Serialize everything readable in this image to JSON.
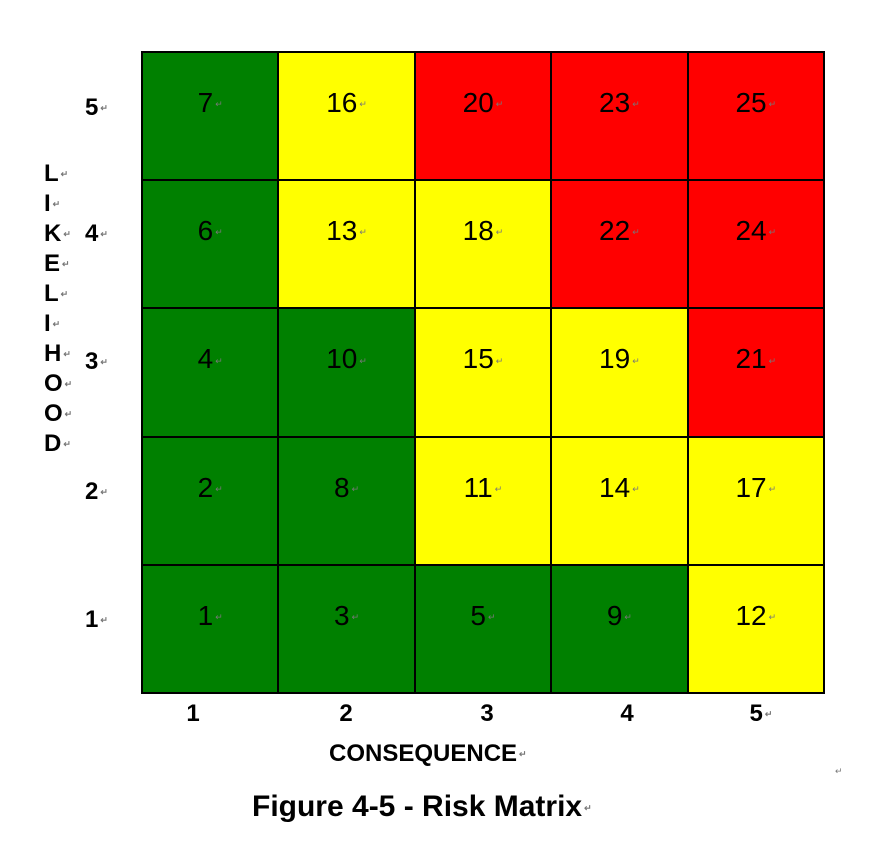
{
  "chart_data": {
    "type": "heatmap",
    "xlabel": "CONSEQUENCE",
    "ylabel": "LIKELIHOOD",
    "caption": "Figure 4-5 - Risk Matrix",
    "x_ticks": [
      "1",
      "2",
      "3",
      "4",
      "5"
    ],
    "y_ticks": [
      "5",
      "4",
      "3",
      "2",
      "1"
    ],
    "rows": [
      {
        "likelihood": "5",
        "values": [
          7,
          16,
          20,
          23,
          25
        ],
        "levels": [
          "green",
          "yellow",
          "red",
          "red",
          "red"
        ]
      },
      {
        "likelihood": "4",
        "values": [
          6,
          13,
          18,
          22,
          24
        ],
        "levels": [
          "green",
          "yellow",
          "yellow",
          "red",
          "red"
        ]
      },
      {
        "likelihood": "3",
        "values": [
          4,
          10,
          15,
          19,
          21
        ],
        "levels": [
          "green",
          "green",
          "yellow",
          "yellow",
          "red"
        ]
      },
      {
        "likelihood": "2",
        "values": [
          2,
          8,
          11,
          14,
          17
        ],
        "levels": [
          "green",
          "green",
          "yellow",
          "yellow",
          "yellow"
        ]
      },
      {
        "likelihood": "1",
        "values": [
          1,
          3,
          5,
          9,
          12
        ],
        "levels": [
          "green",
          "green",
          "green",
          "green",
          "yellow"
        ]
      }
    ],
    "colors": {
      "green": "#008000",
      "yellow": "#ffff00",
      "red": "#ff0000"
    }
  },
  "paragraph_mark": "↵"
}
